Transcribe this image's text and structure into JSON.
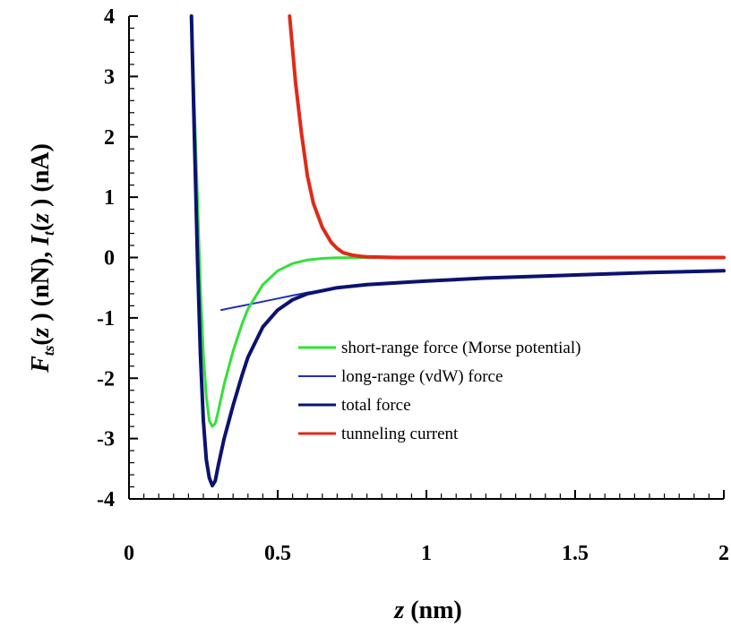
{
  "chart_data": {
    "type": "line",
    "xlabel": "z (nm)",
    "ylabel": "Fts(z) (nN), It(z) (nA)",
    "xlim": [
      0,
      2
    ],
    "ylim": [
      -4,
      4
    ],
    "xticks": [
      0,
      0.5,
      1,
      1.5,
      2
    ],
    "xtick_labels": [
      "0",
      "0.5",
      "1",
      "1.5",
      "2"
    ],
    "yticks": [
      4,
      3,
      2,
      1,
      0,
      -1,
      -2,
      -3,
      -4
    ],
    "ytick_labels": [
      "4",
      "3",
      "2",
      "1",
      "0",
      "-1",
      "-2",
      "-3",
      "-4"
    ],
    "grid": false,
    "legend_position": "lower-right inside plot",
    "series": [
      {
        "name": "short-range force (Morse potential)",
        "color": "#33e03a",
        "x": [
          0.21,
          0.22,
          0.23,
          0.24,
          0.25,
          0.26,
          0.27,
          0.28,
          0.29,
          0.3,
          0.32,
          0.35,
          0.38,
          0.4,
          0.45,
          0.5,
          0.55,
          0.6,
          0.65,
          0.7,
          0.8,
          1.0,
          1.5,
          2.0
        ],
        "y": [
          4.0,
          2.5,
          1.0,
          -0.5,
          -1.6,
          -2.3,
          -2.7,
          -2.8,
          -2.75,
          -2.55,
          -2.1,
          -1.55,
          -1.1,
          -0.85,
          -0.45,
          -0.22,
          -0.1,
          -0.04,
          -0.015,
          -0.005,
          0.0,
          0.0,
          0.0,
          0.0
        ]
      },
      {
        "name": "long-range (vdW) force",
        "color": "#2030c0",
        "x": [
          0.31,
          0.35,
          0.4,
          0.45,
          0.5,
          0.55,
          0.6,
          0.7,
          0.8,
          1.0,
          1.2,
          1.5,
          1.75,
          2.0
        ],
        "y": [
          -0.87,
          -0.83,
          -0.78,
          -0.73,
          -0.68,
          -0.63,
          -0.58,
          -0.51,
          -0.46,
          -0.39,
          -0.34,
          -0.29,
          -0.25,
          -0.22
        ]
      },
      {
        "name": "total force",
        "color": "#0b1270",
        "x": [
          0.21,
          0.22,
          0.23,
          0.24,
          0.25,
          0.26,
          0.27,
          0.28,
          0.29,
          0.3,
          0.32,
          0.35,
          0.38,
          0.4,
          0.45,
          0.5,
          0.55,
          0.6,
          0.7,
          0.8,
          1.0,
          1.2,
          1.5,
          1.75,
          2.0
        ],
        "y": [
          4.0,
          2.0,
          0.0,
          -1.6,
          -2.7,
          -3.35,
          -3.65,
          -3.78,
          -3.7,
          -3.45,
          -3.0,
          -2.45,
          -1.95,
          -1.65,
          -1.15,
          -0.87,
          -0.7,
          -0.6,
          -0.5,
          -0.45,
          -0.39,
          -0.34,
          -0.29,
          -0.25,
          -0.22
        ]
      },
      {
        "name": "tunneling current",
        "color": "#e02a18",
        "x": [
          0.54,
          0.56,
          0.58,
          0.6,
          0.62,
          0.65,
          0.68,
          0.7,
          0.72,
          0.75,
          0.78,
          0.8,
          0.9,
          1.0,
          1.5,
          2.0
        ],
        "y": [
          4.0,
          2.9,
          2.05,
          1.35,
          0.9,
          0.5,
          0.25,
          0.15,
          0.08,
          0.04,
          0.02,
          0.01,
          0.0,
          0.0,
          0.0,
          0.0
        ]
      }
    ]
  }
}
